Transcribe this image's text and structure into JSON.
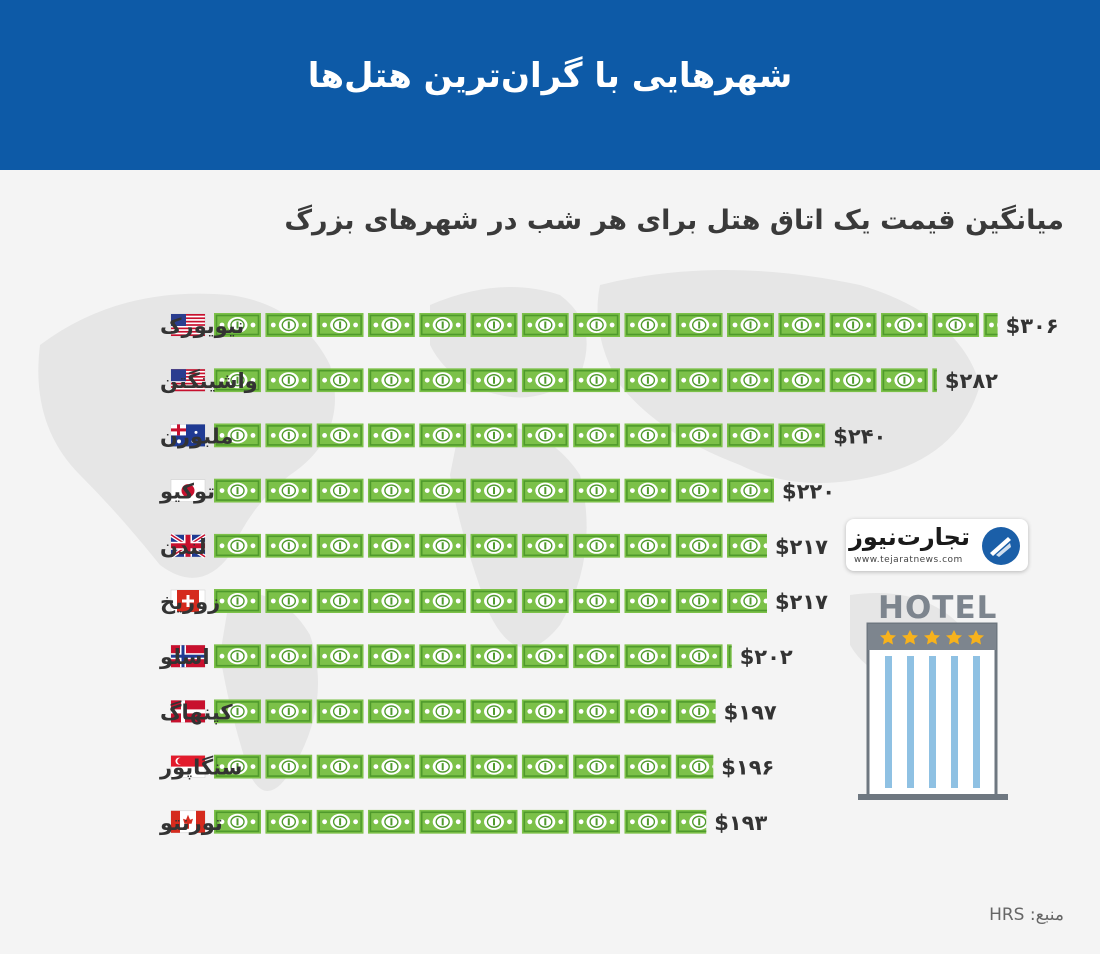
{
  "header": {
    "title": "شهرهایی با گران‌ترین هتل‌ها"
  },
  "chart_data": {
    "type": "bar",
    "title": "میانگین قیمت یک اتاق هتل برای هر شب در شهرهای بزرگ",
    "categories": [
      "نیویورک",
      "واشینگتن",
      "ملبورن",
      "توکیو",
      "لندن",
      "زوریخ",
      "اسلو",
      "کپنهاگ",
      "سنگاپور",
      "تورنتو"
    ],
    "values": [
      306,
      282,
      240,
      220,
      217,
      217,
      202,
      197,
      196,
      193
    ],
    "value_labels": [
      "$۳۰۶",
      "$۲۸۲",
      "$۲۴۰",
      "$۲۲۰",
      "$۲۱۷",
      "$۲۱۷",
      "$۲۰۲",
      "$۱۹۷",
      "$۱۹۶",
      "$۱۹۳"
    ],
    "flags": [
      "us",
      "us",
      "au",
      "jp",
      "gb",
      "ch",
      "no",
      "dk",
      "sg",
      "ca"
    ],
    "unit_per_bill": 20,
    "colors": {
      "bill": "#7cc149",
      "bill_dark": "#4f9a2c",
      "header": "#0d5aa7"
    }
  },
  "brand": {
    "name": "تجارت‌نیوز",
    "url": "www.tejaratnews.com"
  },
  "hotel": {
    "label": "HOTEL"
  },
  "source": {
    "label": "منبع: HRS"
  }
}
